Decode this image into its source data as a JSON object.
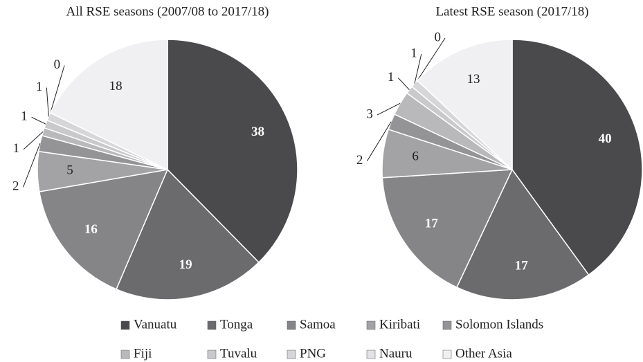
{
  "chart_data": [
    {
      "type": "pie",
      "title": "All RSE seasons (2007/08 to 2017/18)",
      "categories": [
        "Vanuatu",
        "Tonga",
        "Samoa",
        "Kiribati",
        "Solomon Islands",
        "Fiji",
        "Tuvalu",
        "PNG",
        "Nauru",
        "Other Asia"
      ],
      "values": [
        38,
        19,
        16,
        5,
        2,
        1,
        1,
        1,
        0,
        18
      ],
      "colors": [
        "#4a4a4c",
        "#6b6b6d",
        "#858587",
        "#a3a3a5",
        "#949496",
        "#b9b9bb",
        "#c9c9cb",
        "#d6d6d8",
        "#e2e2e4",
        "#f0f0f2"
      ]
    },
    {
      "type": "pie",
      "title": "Latest RSE season (2017/18)",
      "categories": [
        "Vanuatu",
        "Tonga",
        "Samoa",
        "Kiribati",
        "Solomon Islands",
        "Fiji",
        "Tuvalu",
        "PNG",
        "Nauru",
        "Other Asia"
      ],
      "values": [
        40,
        17,
        17,
        6,
        2,
        3,
        1,
        1,
        0,
        13
      ],
      "colors": [
        "#4a4a4c",
        "#6b6b6d",
        "#858587",
        "#a3a3a5",
        "#949496",
        "#b9b9bb",
        "#c9c9cb",
        "#d6d6d8",
        "#e2e2e4",
        "#f0f0f2"
      ]
    }
  ]
}
